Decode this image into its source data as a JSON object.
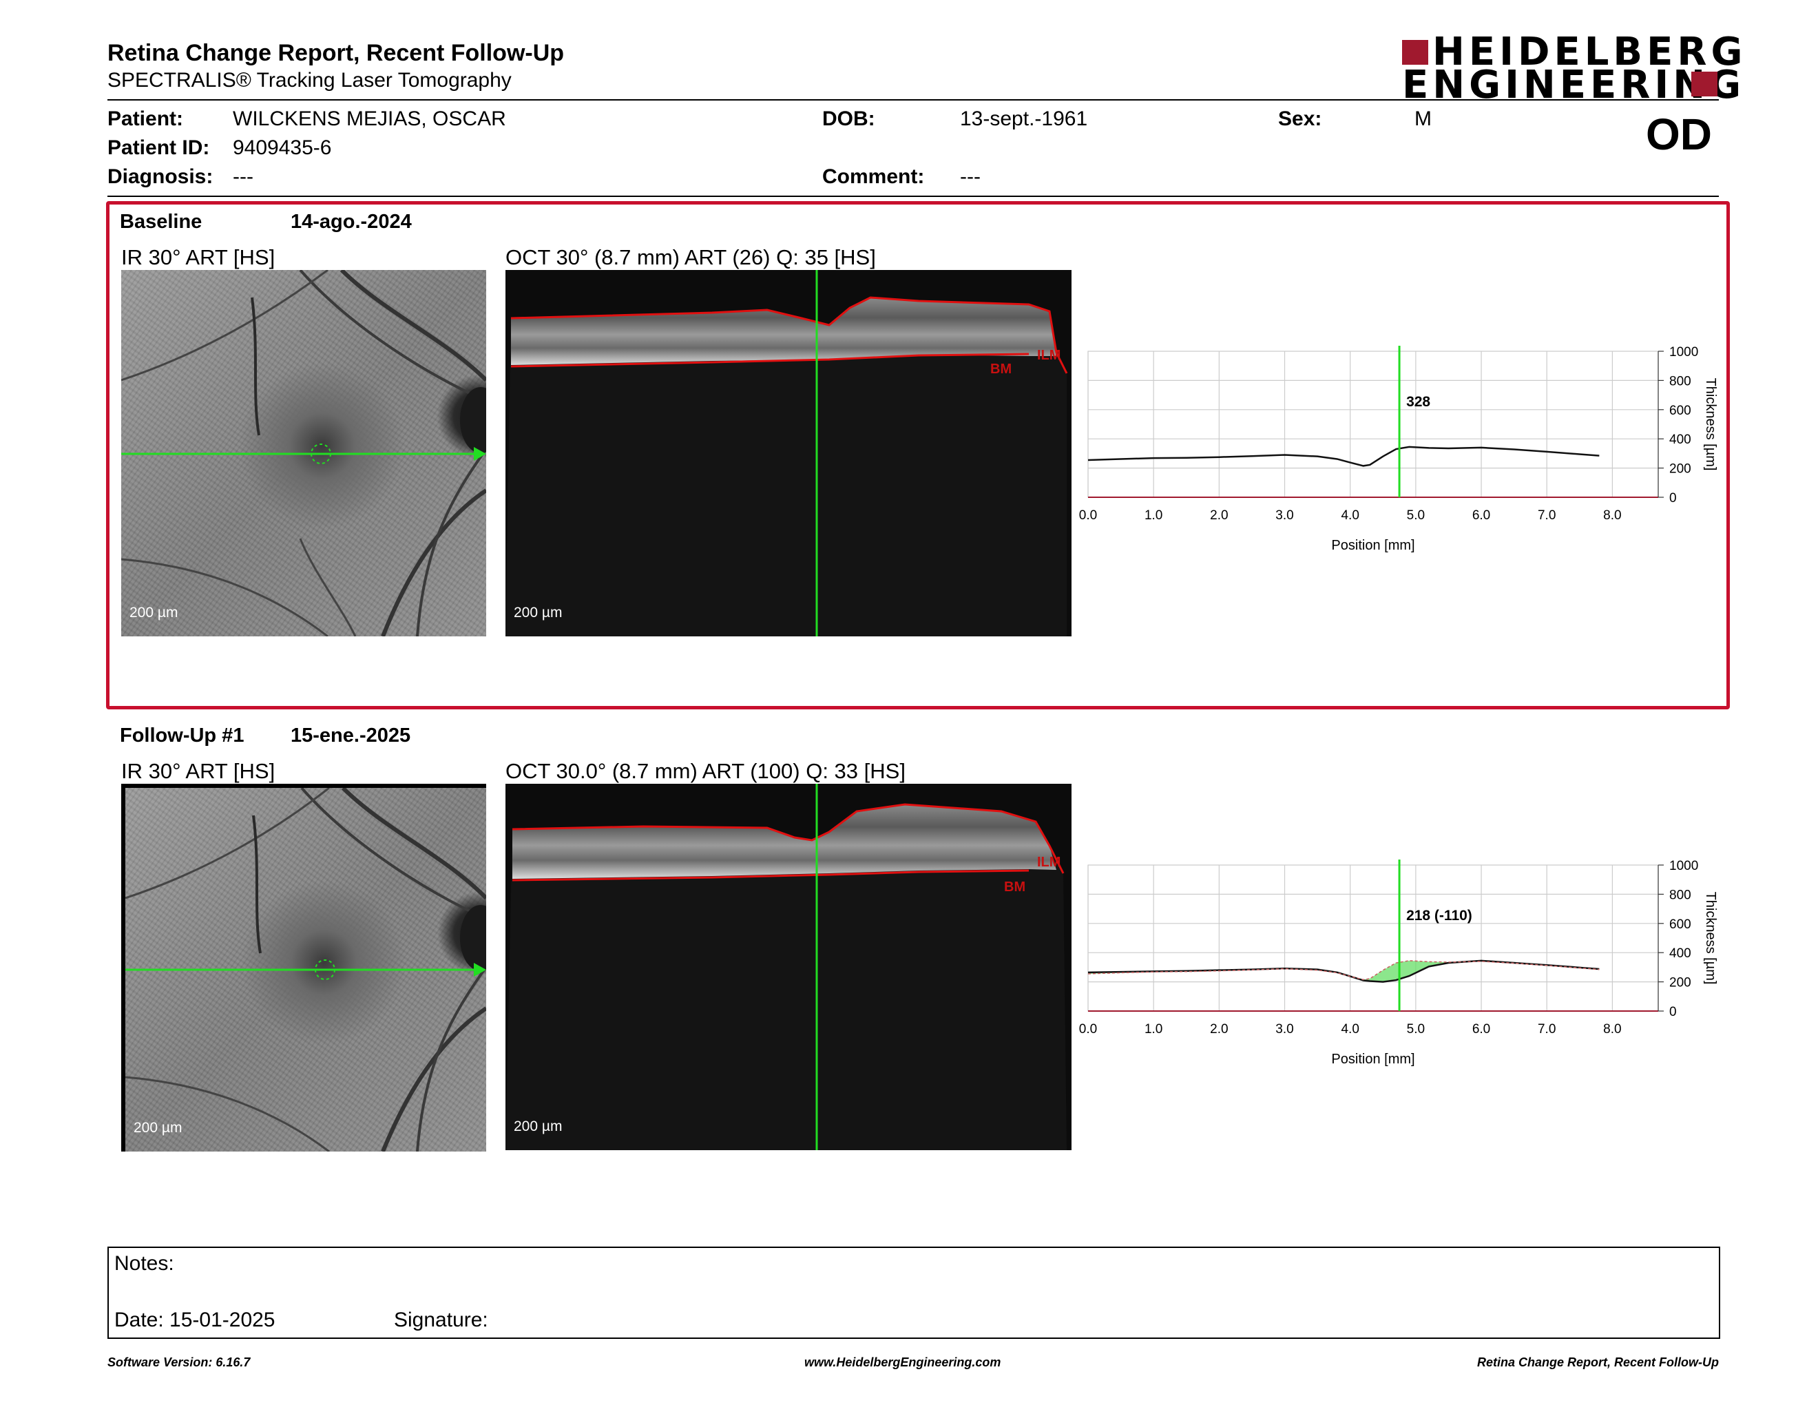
{
  "header": {
    "title": "Retina Change Report, Recent Follow-Up",
    "subtitle": "SPECTRALIS® Tracking Laser Tomography",
    "logo_line1": "HEIDELBERG",
    "logo_line2": "ENGINEERING",
    "brand_color": "#a0192e"
  },
  "patient": {
    "patient_label": "Patient:",
    "patient_value": "WILCKENS MEJIAS, OSCAR",
    "id_label": "Patient ID:",
    "id_value": "9409435-6",
    "diagnosis_label": "Diagnosis:",
    "diagnosis_value": "---",
    "dob_label": "DOB:",
    "dob_value": "13-sept.-1961",
    "comment_label": "Comment:",
    "comment_value": "---",
    "sex_label": "Sex:",
    "sex_value": "M",
    "eye": "OD"
  },
  "baseline": {
    "label": "Baseline",
    "date": "14-ago.-2024",
    "ir_title": "IR 30° ART [HS]",
    "oct_title": "OCT 30° (8.7 mm) ART (26) Q: 35 [HS]",
    "scale_ir": "200 µm",
    "scale_oct": "200 µm",
    "ilm_label": "ILM",
    "bm_label": "BM",
    "highlight_color": "#c8102e"
  },
  "followup": {
    "label": "Follow-Up #1",
    "date": "15-ene.-2025",
    "ir_title": "IR 30° ART [HS]",
    "oct_title": "OCT 30.0° (8.7 mm) ART (100) Q: 33 [HS]",
    "scale_ir": "200 µm",
    "scale_oct": "200 µm",
    "ilm_label": "ILM",
    "bm_label": "BM"
  },
  "chart_data": [
    {
      "type": "line",
      "xlabel": "Position [mm]",
      "ylabel": "Thickness [µm]",
      "xlim": [
        0,
        8.7
      ],
      "ylim": [
        0,
        1000
      ],
      "x_ticks": [
        "0.0",
        "1.0",
        "2.0",
        "3.0",
        "4.0",
        "5.0",
        "6.0",
        "7.0",
        "8.0"
      ],
      "y_ticks": [
        "0",
        "200",
        "400",
        "600",
        "800",
        "1000"
      ],
      "marker_x": 4.75,
      "marker_label": "328",
      "series": [
        {
          "x": [
            0,
            0.5,
            1,
            1.5,
            2,
            2.5,
            3,
            3.5,
            3.8,
            4.0,
            4.2,
            4.3,
            4.5,
            4.7,
            4.9,
            5.2,
            5.5,
            6.0,
            6.5,
            7.0,
            7.5,
            7.8
          ],
          "y": [
            255,
            262,
            268,
            270,
            275,
            282,
            290,
            280,
            262,
            238,
            215,
            222,
            280,
            330,
            345,
            338,
            335,
            340,
            328,
            312,
            295,
            285
          ]
        }
      ]
    },
    {
      "type": "line",
      "xlabel": "Position [mm]",
      "ylabel": "Thickness [µm]",
      "xlim": [
        0,
        8.7
      ],
      "ylim": [
        0,
        1000
      ],
      "x_ticks": [
        "0.0",
        "1.0",
        "2.0",
        "3.0",
        "4.0",
        "5.0",
        "6.0",
        "7.0",
        "8.0"
      ],
      "y_ticks": [
        "0",
        "200",
        "400",
        "600",
        "800",
        "1000"
      ],
      "marker_x": 4.75,
      "marker_label": "218 (-110)",
      "series": [
        {
          "x": [
            0,
            0.5,
            1,
            1.5,
            2,
            2.5,
            3,
            3.5,
            3.8,
            4.0,
            4.2,
            4.3,
            4.5,
            4.7,
            4.9,
            5.2,
            5.5,
            6.0,
            6.5,
            7.0,
            7.5,
            7.8
          ],
          "y": [
            255,
            262,
            268,
            270,
            275,
            282,
            290,
            280,
            262,
            238,
            215,
            222,
            280,
            330,
            345,
            338,
            335,
            340,
            328,
            312,
            295,
            285
          ]
        },
        {
          "x": [
            0,
            0.5,
            1,
            1.5,
            2,
            2.5,
            3,
            3.5,
            3.8,
            4.0,
            4.2,
            4.3,
            4.5,
            4.7,
            4.9,
            5.2,
            5.5,
            6.0,
            6.5,
            7.0,
            7.5,
            7.8
          ],
          "y": [
            265,
            268,
            272,
            275,
            280,
            285,
            292,
            285,
            265,
            238,
            210,
            205,
            200,
            212,
            240,
            305,
            330,
            345,
            330,
            315,
            298,
            288
          ]
        }
      ]
    }
  ],
  "notes": {
    "notes_label": "Notes:",
    "date_label": "Date: 15-01-2025",
    "signature_label": "Signature:"
  },
  "footer": {
    "left": "Software Version: 6.16.7",
    "center": "www.HeidelbergEngineering.com",
    "right": "Retina Change Report, Recent Follow-Up"
  }
}
